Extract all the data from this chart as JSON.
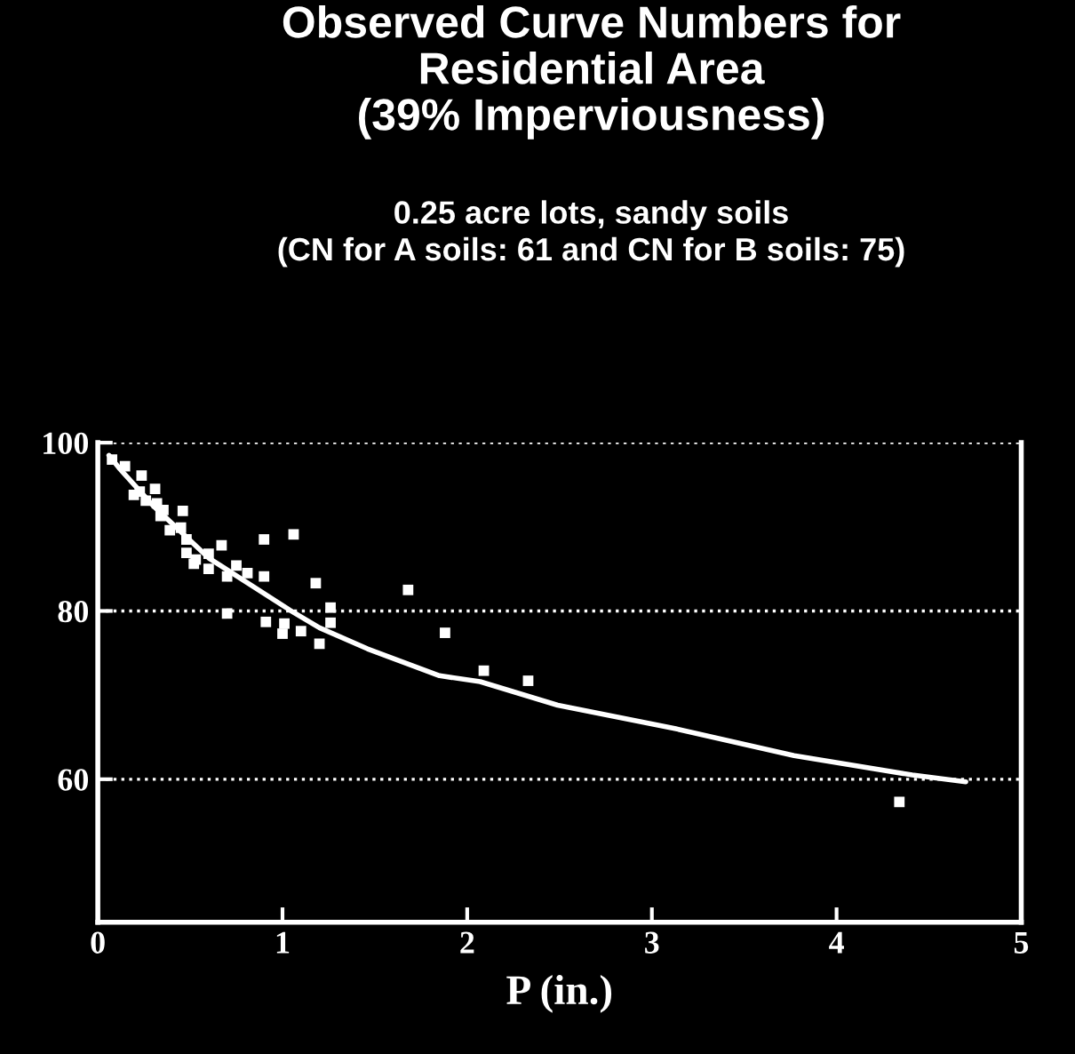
{
  "chart_data": {
    "type": "scatter",
    "title": "Observed Curve Numbers for\nResidential Area\n(39% Imperviousness)",
    "subtitle": "0.25 acre lots, sandy soils\n(CN for A soils: 61 and CN for B soils: 75)",
    "xlabel": "P (in.)",
    "xlim": [
      0,
      5
    ],
    "ylim": [
      43,
      100
    ],
    "xticks": [
      0,
      1,
      2,
      3,
      4,
      5
    ],
    "yticks": [
      60,
      80,
      100
    ],
    "grid": "y",
    "marker": "square",
    "legend": false,
    "series": [
      {
        "color": "#ffffff",
        "x": [
          0.077,
          0.147,
          0.237,
          0.195,
          0.227,
          0.26,
          0.31,
          0.32,
          0.355,
          0.34,
          0.39,
          0.46,
          0.45,
          0.48,
          0.48,
          0.53,
          0.6,
          0.6,
          0.52,
          0.67,
          0.7,
          0.7,
          0.75,
          0.81,
          0.9,
          0.9,
          1.06,
          0.91,
          1.0,
          1.01,
          1.1,
          1.2,
          1.18,
          1.26,
          1.26,
          1.68,
          1.88,
          2.09,
          2.33,
          4.34
        ],
        "values": [
          98.0,
          97.2,
          96.1,
          93.8,
          94.2,
          93.1,
          94.5,
          92.8,
          92.0,
          91.3,
          89.6,
          91.9,
          89.9,
          88.5,
          86.9,
          86.1,
          86.8,
          85.0,
          85.6,
          87.8,
          84.1,
          79.7,
          85.4,
          84.5,
          88.5,
          84.1,
          89.1,
          78.7,
          77.3,
          78.5,
          77.6,
          76.1,
          83.3,
          80.4,
          78.6,
          82.5,
          77.4,
          72.9,
          71.7,
          57.3
        ]
      },
      {
        "type": "line",
        "color": "#ffffff",
        "x": [
          0.06,
          0.115,
          0.3,
          0.6,
          1.04,
          1.2,
          1.46,
          1.85,
          2.07,
          2.49,
          3.13,
          3.77,
          4.41,
          4.7
        ],
        "values": [
          98.5,
          97.0,
          92.5,
          86.3,
          80.1,
          78.0,
          75.5,
          72.3,
          71.6,
          68.8,
          66.0,
          62.8,
          60.5,
          59.7
        ],
        "line_style": "solid",
        "marker": "none"
      }
    ]
  }
}
